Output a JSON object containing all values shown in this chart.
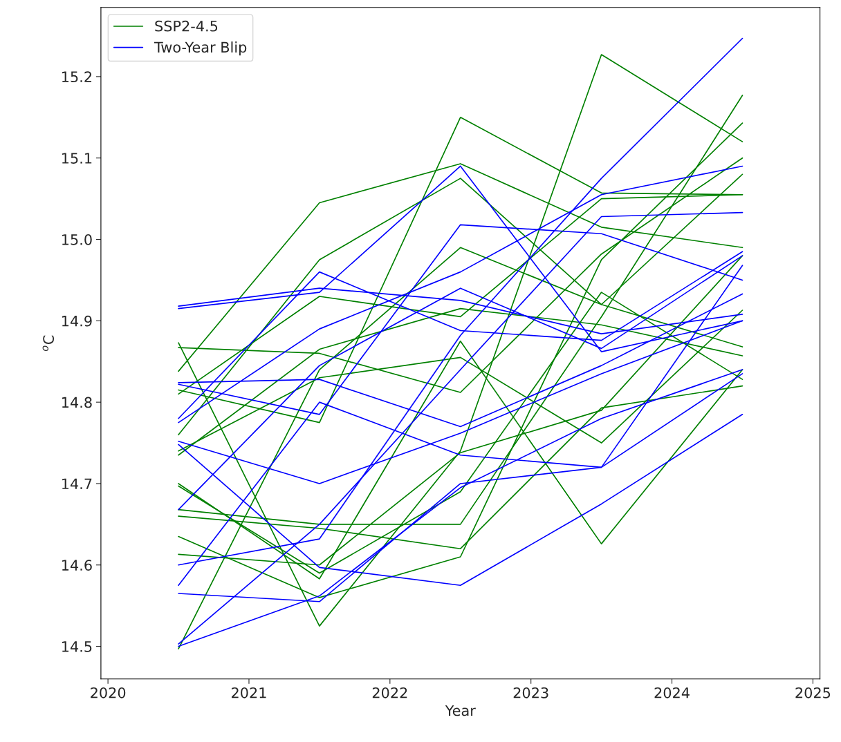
{
  "chart_data": {
    "type": "line",
    "xlabel": "Year",
    "ylabel": "$^{o}$C",
    "x": [
      2020.5,
      2021.5,
      2022.5,
      2023.5,
      2024.5
    ],
    "xlim": [
      2019.95,
      2025.05
    ],
    "xticks": [
      2020,
      2021,
      2022,
      2023,
      2024,
      2025
    ],
    "ylim": [
      14.46,
      15.285
    ],
    "yticks": [
      {
        "value": 14.5,
        "label": "14.5"
      },
      {
        "value": 14.6,
        "label": "14.6"
      },
      {
        "value": 14.7,
        "label": "14.7"
      },
      {
        "value": 14.8,
        "label": "14.8"
      },
      {
        "value": 14.9,
        "label": "14.9"
      },
      {
        "value": 15.0,
        "label": "15.0"
      },
      {
        "value": 15.1,
        "label": "15.1"
      },
      {
        "value": 15.2,
        "label": "15.2"
      }
    ],
    "legend": "top left",
    "grid": false,
    "series": [
      {
        "name": "SSP2-4.5",
        "color": "#008000",
        "values": [
          14.838,
          15.045,
          15.093,
          15.015,
          14.99
        ]
      },
      {
        "color": "#008000",
        "values": [
          14.76,
          14.975,
          15.075,
          14.92,
          14.868
        ]
      },
      {
        "color": "#008000",
        "values": [
          14.81,
          14.93,
          14.905,
          15.05,
          15.055
        ]
      },
      {
        "color": "#008000",
        "values": [
          14.873,
          14.525,
          14.74,
          15.227,
          15.12
        ]
      },
      {
        "color": "#008000",
        "values": [
          14.867,
          14.86,
          14.812,
          14.982,
          15.1
        ]
      },
      {
        "color": "#008000",
        "values": [
          14.815,
          14.775,
          15.15,
          15.057,
          15.055
        ]
      },
      {
        "color": "#008000",
        "values": [
          14.74,
          14.83,
          14.855,
          14.75,
          14.913
        ]
      },
      {
        "color": "#008000",
        "values": [
          14.735,
          14.865,
          14.915,
          14.895,
          14.857
        ]
      },
      {
        "color": "#008000",
        "values": [
          14.7,
          14.583,
          14.875,
          14.626,
          14.84
        ]
      },
      {
        "color": "#008000",
        "values": [
          14.697,
          14.59,
          14.69,
          14.935,
          14.828
        ]
      },
      {
        "color": "#008000",
        "values": [
          14.668,
          14.65,
          14.65,
          14.905,
          15.177
        ]
      },
      {
        "color": "#008000",
        "values": [
          14.66,
          14.645,
          14.62,
          14.793,
          14.82
        ]
      },
      {
        "color": "#008000",
        "values": [
          14.635,
          14.56,
          14.61,
          14.975,
          15.143
        ]
      },
      {
        "color": "#008000",
        "values": [
          14.613,
          14.6,
          14.738,
          14.79,
          14.98
        ]
      },
      {
        "color": "#008000",
        "values": [
          14.497,
          14.84,
          14.99,
          14.92,
          15.08
        ]
      },
      {
        "name": "Two-Year Blip",
        "color": "#0000ff",
        "values": [
          14.918,
          14.94,
          14.925,
          14.884,
          14.908
        ]
      },
      {
        "color": "#0000ff",
        "values": [
          14.915,
          14.935,
          15.09,
          14.862,
          14.9
        ]
      },
      {
        "color": "#0000ff",
        "values": [
          14.824,
          14.828,
          14.77,
          14.845,
          14.933
        ]
      },
      {
        "color": "#0000ff",
        "values": [
          14.822,
          14.785,
          15.018,
          15.007,
          14.95
        ]
      },
      {
        "color": "#0000ff",
        "values": [
          14.78,
          14.96,
          14.888,
          14.876,
          14.985
        ]
      },
      {
        "color": "#0000ff",
        "values": [
          14.775,
          14.89,
          14.96,
          15.055,
          15.09
        ]
      },
      {
        "color": "#0000ff",
        "values": [
          14.752,
          14.7,
          14.762,
          14.835,
          14.9
        ]
      },
      {
        "color": "#0000ff",
        "values": [
          14.748,
          14.597,
          14.575,
          14.675,
          14.785
        ]
      },
      {
        "color": "#0000ff",
        "values": [
          14.668,
          14.845,
          14.94,
          14.866,
          14.98
        ]
      },
      {
        "color": "#0000ff",
        "values": [
          14.6,
          14.632,
          14.882,
          15.075,
          15.247
        ]
      },
      {
        "color": "#0000ff",
        "values": [
          14.575,
          14.8,
          14.735,
          14.72,
          14.968
        ]
      },
      {
        "color": "#0000ff",
        "values": [
          14.565,
          14.555,
          14.7,
          14.72,
          14.835
        ]
      },
      {
        "color": "#0000ff",
        "values": [
          14.503,
          14.65,
          14.84,
          15.028,
          15.033
        ]
      },
      {
        "color": "#0000ff",
        "values": [
          14.5,
          14.562,
          14.695,
          14.78,
          14.84
        ]
      }
    ]
  }
}
